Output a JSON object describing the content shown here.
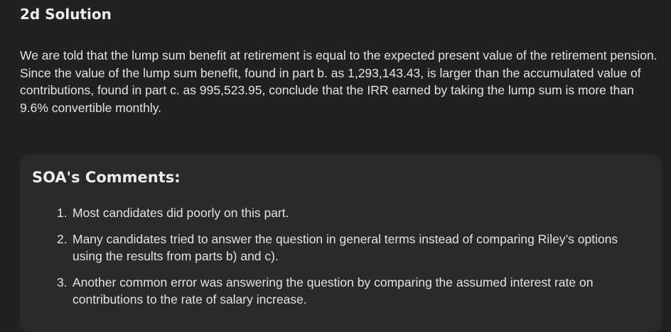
{
  "section": {
    "title": "2d Solution",
    "body": "We are told that the lump sum benefit at retirement is equal to the expected present value of the retirement pension. Since the value of the lump sum benefit, found in part b. as 1,293,143.43, is larger than the accumulated value of contributions, found in part c. as 995,523.95, conclude that the IRR earned by taking the lump sum is more than 9.6% convertible monthly."
  },
  "comments": {
    "title": "SOA's Comments:",
    "items": [
      {
        "number": "1.",
        "text": "Most candidates did poorly on this part."
      },
      {
        "number": "2.",
        "text": "Many candidates tried to answer the question in general terms instead of comparing Riley’s options using the results from parts b) and c)."
      },
      {
        "number": "3.",
        "text": "Another common error was answering the question by comparing the assumed interest rate on contributions to the rate of salary increase."
      }
    ]
  }
}
